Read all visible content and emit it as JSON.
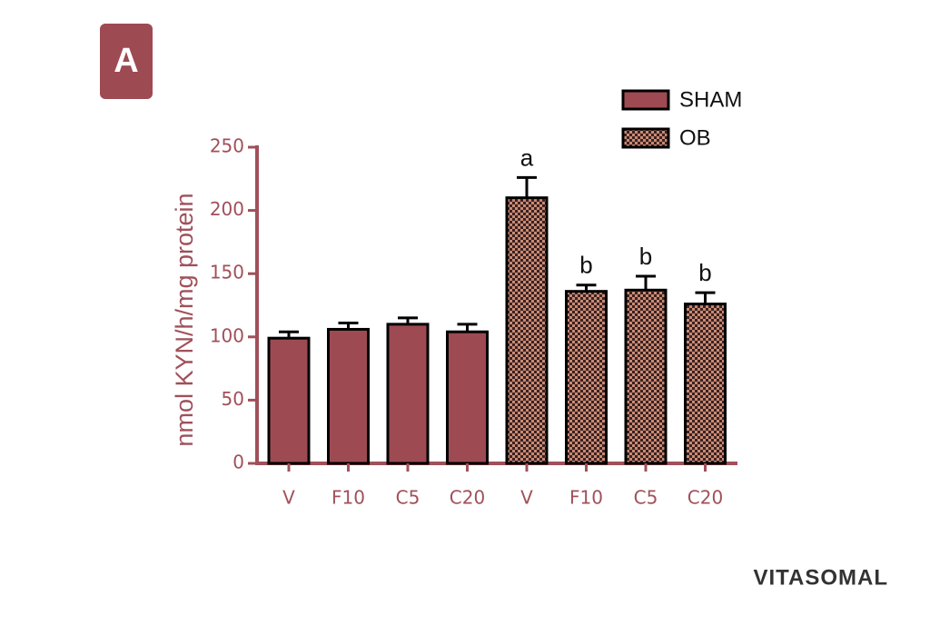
{
  "panel_label": "A",
  "watermark": "VITASOMAL",
  "chart_data": {
    "type": "bar",
    "ylabel": "nmol KYN/h/mg protein",
    "categories": [
      "V",
      "F10",
      "C5",
      "C20"
    ],
    "series": [
      {
        "name": "SHAM",
        "color": "#9e4a52",
        "values": [
          99,
          106,
          110,
          104
        ],
        "errors": [
          5,
          5,
          5,
          6
        ]
      },
      {
        "name": "OB",
        "color": "#c98a72",
        "pattern": "checker",
        "values": [
          210,
          136,
          137,
          126
        ],
        "errors": [
          16,
          5,
          11,
          9
        ],
        "letters": [
          "a",
          "b",
          "b",
          "b"
        ]
      }
    ],
    "ylim": [
      0,
      250
    ],
    "yticks": [
      0,
      50,
      100,
      150,
      200,
      250
    ],
    "legend": "top-right",
    "axis_color": "#a0505a"
  }
}
